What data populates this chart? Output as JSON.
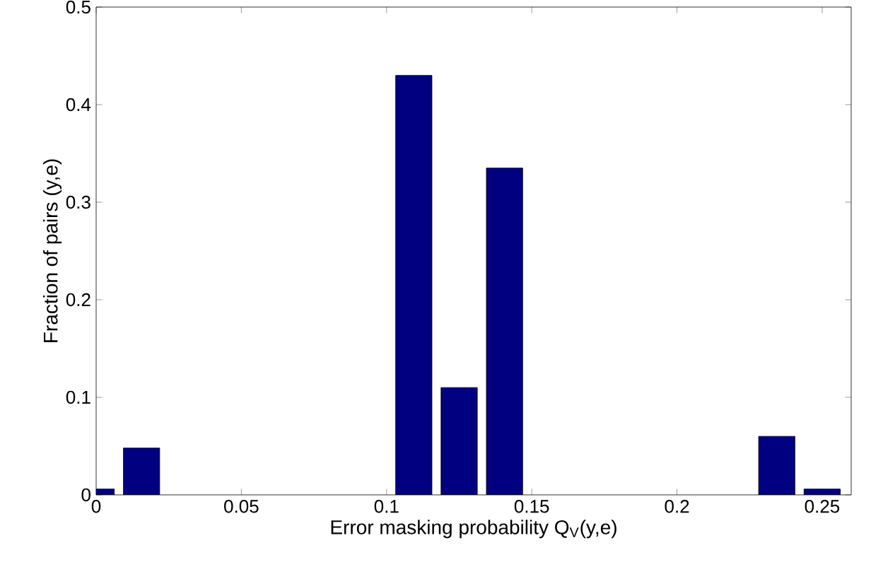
{
  "chart_data": {
    "type": "bar",
    "xlabel": "Error masking probability Q$_{V}$(y,e)",
    "ylabel": "Fraction of pairs (y,e)",
    "x": [
      0,
      0.015625,
      0.109375,
      0.125,
      0.140625,
      0.234375,
      0.25
    ],
    "values": [
      0.006,
      0.048,
      0.43,
      0.11,
      0.335,
      0.06,
      0.006
    ],
    "color": "#000080",
    "xlim": [
      0,
      0.26
    ],
    "ylim": [
      0,
      0.5
    ],
    "xticks": [
      0,
      0.05,
      0.1,
      0.15,
      0.2,
      0.25
    ],
    "yticks": [
      0,
      0.1,
      0.2,
      0.3,
      0.4,
      0.5
    ]
  }
}
